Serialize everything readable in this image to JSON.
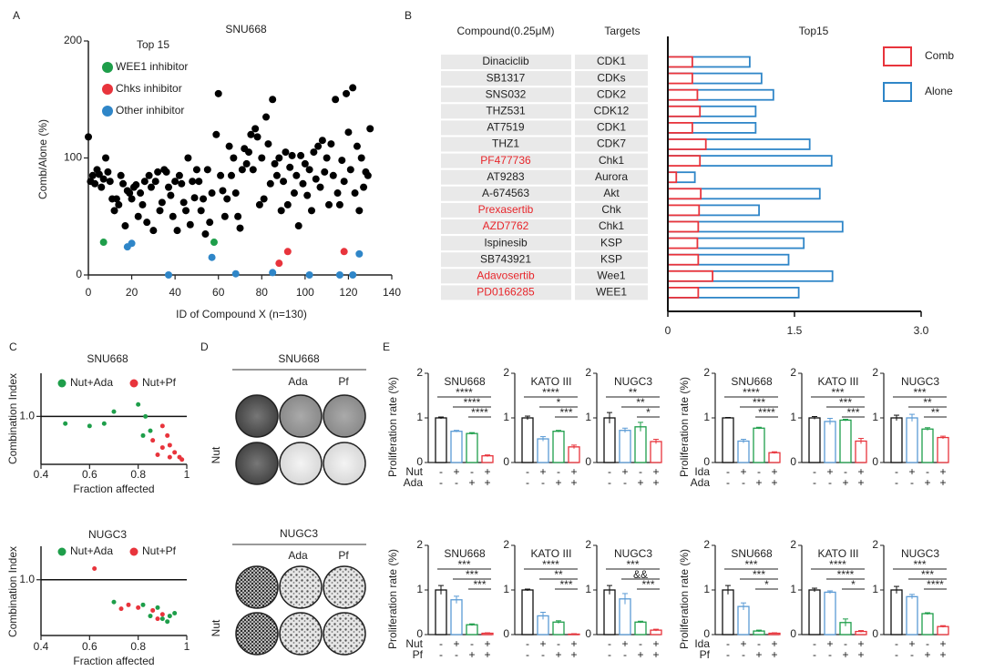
{
  "panel_labels": [
    "A",
    "B",
    "C",
    "D",
    "E"
  ],
  "panel_d": [
    {
      "title": "SNU668",
      "columns": [
        "Ada",
        "Pf"
      ],
      "row_label": "Nut"
    },
    {
      "title": "NUGC3",
      "columns": [
        "Ada",
        "Pf"
      ],
      "row_label": "Nut"
    }
  ],
  "chart_data": [
    {
      "type": "scatter",
      "title": "SNU668",
      "xlabel": "ID of Compound X (n=130)",
      "ylabel": "Comb/Alone (%)",
      "xlim": [
        0,
        140
      ],
      "xticks": [
        0,
        20,
        40,
        60,
        80,
        100,
        120,
        140
      ],
      "ylim": [
        0,
        200
      ],
      "yticks": [
        0,
        100,
        200
      ],
      "grid": false,
      "legend_title": "Top 15",
      "series": [
        {
          "color": "#000000",
          "x": [
            0,
            1,
            2,
            3,
            4,
            5,
            6,
            7,
            8,
            9,
            10,
            11,
            12,
            13,
            14,
            15,
            16,
            17,
            18,
            19,
            20,
            21,
            22,
            23,
            24,
            25,
            26,
            27,
            28,
            29,
            30,
            31,
            32,
            33,
            34,
            35,
            36,
            37,
            38,
            39,
            40,
            41,
            42,
            43,
            44,
            45,
            46,
            47,
            48,
            49,
            50,
            51,
            52,
            53,
            54,
            55,
            56,
            57,
            59,
            60,
            61,
            62,
            63,
            64,
            65,
            66,
            67,
            68,
            69,
            70,
            71,
            72,
            73,
            74,
            75,
            76,
            77,
            78,
            79,
            80,
            81,
            82,
            83,
            84,
            85,
            86,
            87,
            88,
            89,
            90,
            91,
            92,
            93,
            94,
            95,
            96,
            97,
            98,
            99,
            100,
            101,
            102,
            103,
            104,
            105,
            106,
            107,
            108,
            109,
            110,
            111,
            112,
            113,
            114,
            115,
            116,
            117,
            118,
            119,
            120,
            121,
            122,
            123,
            124,
            125,
            126,
            127,
            128,
            129,
            130
          ],
          "y": [
            118,
            80,
            85,
            78,
            90,
            86,
            75,
            82,
            100,
            88,
            80,
            65,
            55,
            65,
            60,
            85,
            78,
            42,
            72,
            70,
            65,
            75,
            77,
            50,
            70,
            60,
            80,
            45,
            85,
            75,
            38,
            80,
            88,
            55,
            62,
            90,
            88,
            75,
            68,
            50,
            80,
            38,
            85,
            78,
            62,
            55,
            100,
            43,
            80,
            66,
            90,
            80,
            55,
            65,
            35,
            90,
            45,
            70,
            120,
            155,
            85,
            72,
            50,
            65,
            110,
            85,
            100,
            70,
            50,
            40,
            90,
            108,
            95,
            105,
            120,
            90,
            125,
            118,
            60,
            100,
            65,
            135,
            112,
            78,
            150,
            95,
            85,
            100,
            55,
            80,
            105,
            60,
            92,
            102,
            70,
            85,
            42,
            102,
            78,
            95,
            68,
            90,
            55,
            105,
            82,
            110,
            75,
            115,
            88,
            100,
            60,
            112,
            85,
            150,
            70,
            60,
            98,
            80,
            155,
            122,
            90,
            160,
            70,
            110,
            55,
            100,
            75,
            88,
            85,
            125
          ]
        },
        {
          "name": "WEE1 inhibitor",
          "color": "#1e9e4a",
          "x": [
            7,
            58
          ],
          "y": [
            28,
            28
          ]
        },
        {
          "name": "Chks inhibitor",
          "color": "#e8343c",
          "x": [
            88,
            92,
            118
          ],
          "y": [
            10,
            20,
            20
          ]
        },
        {
          "name": "Other inhibitor",
          "color": "#2f86c8",
          "x": [
            18,
            20,
            37,
            57,
            68,
            85,
            102,
            116,
            122,
            125
          ],
          "y": [
            24,
            27,
            0,
            15,
            1,
            2,
            0,
            0,
            0,
            18
          ]
        }
      ]
    },
    {
      "type": "barh",
      "title": "Top15",
      "category_header": "Compound(0.25μM)",
      "target_header": "Targets",
      "categories": [
        "Dinaciclib",
        "SB1317",
        "SNS032",
        "THZ531",
        "AT7519",
        "THZ1",
        "PF477736",
        "AT9283",
        "A-674563",
        "Prexasertib",
        "AZD7762",
        "Ispinesib",
        "SB743921",
        "Adavosertib",
        "PD0166285"
      ],
      "category_colors": [
        "#222222",
        "#222222",
        "#222222",
        "#222222",
        "#222222",
        "#222222",
        "#e8262b",
        "#222222",
        "#222222",
        "#e8262b",
        "#e8262b",
        "#222222",
        "#222222",
        "#e8262b",
        "#e8262b"
      ],
      "targets": [
        "CDK1",
        "CDKs",
        "CDK2",
        "CDK12",
        "CDK1",
        "CDK7",
        "Chk1",
        "Aurora",
        "Akt",
        "Chk",
        "Chk1",
        "KSP",
        "KSP",
        "Wee1",
        "WEE1"
      ],
      "xlim": [
        0,
        3
      ],
      "xticks": [
        0,
        1.5,
        {
          "value": 3,
          "label": "3.0"
        }
      ],
      "series": [
        {
          "name": "Comb",
          "color": "#e8343c",
          "values": [
            0.29,
            0.29,
            0.35,
            0.38,
            0.29,
            0.45,
            0.38,
            0.1,
            0.39,
            0.37,
            0.36,
            0.35,
            0.36,
            0.53,
            0.36
          ]
        },
        {
          "name": "Alone",
          "color": "#2f86c8",
          "values": [
            0.97,
            1.11,
            1.25,
            1.04,
            1.04,
            1.68,
            1.94,
            0.32,
            1.8,
            1.08,
            2.07,
            1.61,
            1.43,
            1.95,
            1.55
          ]
        }
      ]
    },
    {
      "type": "scatter",
      "title": "SNU668",
      "xlabel": "Fraction affected",
      "ylabel": "Combination Index",
      "xlim": [
        0.4,
        1
      ],
      "xticks": [
        0.4,
        0.6,
        0.8,
        1
      ],
      "ylim": [
        0,
        1.9
      ],
      "yticks": [
        {
          "value": 1,
          "label": "1.0"
        }
      ],
      "grid": true,
      "series": [
        {
          "name": "Nut+Ada",
          "color": "#1e9e4a",
          "x": [
            0.5,
            0.6,
            0.66,
            0.7,
            0.8,
            0.83,
            0.82,
            0.85
          ],
          "y": [
            0.85,
            0.8,
            0.85,
            1.1,
            1.25,
            1.0,
            0.6,
            0.7
          ]
        },
        {
          "name": "Nut+Pf",
          "color": "#e8343c",
          "x": [
            0.86,
            0.9,
            0.92,
            0.88,
            0.93,
            0.95,
            0.97,
            0.98,
            0.93,
            0.9
          ],
          "y": [
            0.5,
            0.35,
            0.6,
            0.2,
            0.4,
            0.25,
            0.15,
            0.1,
            0.15,
            0.8
          ]
        }
      ]
    },
    {
      "type": "scatter",
      "title": "NUGC3",
      "xlabel": "Fraction affected",
      "ylabel": "Combination Index",
      "xlim": [
        0.4,
        1
      ],
      "xticks": [
        0.4,
        0.6,
        0.8,
        1
      ],
      "ylim": [
        0,
        1.6
      ],
      "yticks": [
        {
          "value": 1,
          "label": "1.0"
        }
      ],
      "grid": true,
      "series": [
        {
          "name": "Nut+Ada",
          "color": "#1e9e4a",
          "x": [
            0.7,
            0.82,
            0.9,
            0.93,
            0.92,
            0.88,
            0.85,
            0.95
          ],
          "y": [
            0.6,
            0.55,
            0.3,
            0.35,
            0.25,
            0.5,
            0.35,
            0.4
          ]
        },
        {
          "name": "Nut+Pf",
          "color": "#e8343c",
          "x": [
            0.62,
            0.73,
            0.76,
            0.8,
            0.86,
            0.88,
            0.9
          ],
          "y": [
            1.2,
            0.48,
            0.55,
            0.5,
            0.45,
            0.3,
            0.38
          ]
        }
      ]
    },
    {
      "type": "bar",
      "ylabel": "Proliferation rate (%)",
      "ylim": [
        0,
        2
      ],
      "yticks": [
        0,
        1,
        2
      ],
      "colors": [
        "#111111",
        "#5b9bd5",
        "#1e9e4a",
        "#e8343c"
      ],
      "treatments": [
        {
          "name": "Nut",
          "signs": [
            "-",
            "+",
            "-",
            "+"
          ]
        },
        {
          "name": "Ada",
          "signs": [
            "-",
            "-",
            "+",
            "+"
          ]
        }
      ],
      "subplots": [
        {
          "title": "SNU668",
          "values": [
            1.0,
            0.7,
            0.65,
            0.15
          ],
          "errors": [
            0.02,
            0.02,
            0.02,
            0.02
          ],
          "significance": [
            "****",
            "****",
            "****"
          ]
        },
        {
          "title": "KATO III",
          "values": [
            1.0,
            0.53,
            0.7,
            0.35
          ],
          "errors": [
            0.04,
            0.05,
            0.02,
            0.04
          ],
          "significance": [
            "****",
            "*",
            "***"
          ]
        },
        {
          "title": "NUGC3",
          "values": [
            1.0,
            0.72,
            0.8,
            0.47
          ],
          "errors": [
            0.12,
            0.05,
            0.1,
            0.05
          ],
          "significance": [
            "**",
            "**",
            "*"
          ]
        }
      ]
    },
    {
      "type": "bar",
      "ylabel": "Proliferation rate (%)",
      "ylim": [
        0,
        2
      ],
      "yticks": [
        0,
        1,
        2
      ],
      "colors": [
        "#111111",
        "#5b9bd5",
        "#1e9e4a",
        "#e8343c"
      ],
      "treatments": [
        {
          "name": "Ida",
          "signs": [
            "-",
            "+",
            "-",
            "+"
          ]
        },
        {
          "name": "Ada",
          "signs": [
            "-",
            "-",
            "+",
            "+"
          ]
        }
      ],
      "subplots": [
        {
          "title": "SNU668",
          "values": [
            1.0,
            0.48,
            0.77,
            0.22
          ],
          "errors": [
            0.01,
            0.04,
            0.02,
            0.02
          ],
          "significance": [
            "****",
            "***",
            "****"
          ]
        },
        {
          "title": "KATO III",
          "values": [
            1.0,
            0.92,
            0.95,
            0.48
          ],
          "errors": [
            0.03,
            0.07,
            0.02,
            0.06
          ],
          "significance": [
            "***",
            "***",
            "***"
          ]
        },
        {
          "title": "NUGC3",
          "values": [
            1.0,
            1.0,
            0.75,
            0.56
          ],
          "errors": [
            0.06,
            0.08,
            0.03,
            0.03
          ],
          "significance": [
            "***",
            "**",
            "**"
          ]
        }
      ]
    },
    {
      "type": "bar",
      "ylabel": "Proliferation rate (%)",
      "ylim": [
        0,
        2
      ],
      "yticks": [
        0,
        1,
        2
      ],
      "colors": [
        "#111111",
        "#5b9bd5",
        "#1e9e4a",
        "#e8343c"
      ],
      "treatments": [
        {
          "name": "Nut",
          "signs": [
            "-",
            "+",
            "-",
            "+"
          ]
        },
        {
          "name": "Pf",
          "signs": [
            "-",
            "-",
            "+",
            "+"
          ]
        }
      ],
      "subplots": [
        {
          "title": "SNU668",
          "values": [
            1.0,
            0.78,
            0.22,
            0.03
          ],
          "errors": [
            0.1,
            0.08,
            0.02,
            0.01
          ],
          "significance": [
            "***",
            "***",
            "***"
          ]
        },
        {
          "title": "KATO III",
          "values": [
            1.0,
            0.42,
            0.28,
            0.01
          ],
          "errors": [
            0.02,
            0.08,
            0.03,
            0.01
          ],
          "significance": [
            "****",
            "**",
            "***"
          ]
        },
        {
          "title": "NUGC3",
          "values": [
            1.0,
            0.8,
            0.28,
            0.1
          ],
          "errors": [
            0.1,
            0.12,
            0.02,
            0.02
          ],
          "significance": [
            "***",
            "&&",
            "***"
          ]
        }
      ]
    },
    {
      "type": "bar",
      "ylabel": "Proliferation rate (%)",
      "ylim": [
        0,
        2
      ],
      "yticks": [
        0,
        1,
        2
      ],
      "colors": [
        "#111111",
        "#5b9bd5",
        "#1e9e4a",
        "#e8343c"
      ],
      "treatments": [
        {
          "name": "Ida",
          "signs": [
            "-",
            "+",
            "-",
            "+"
          ]
        },
        {
          "name": "Pf",
          "signs": [
            "-",
            "-",
            "+",
            "+"
          ]
        }
      ],
      "subplots": [
        {
          "title": "SNU668",
          "values": [
            1.0,
            0.63,
            0.08,
            0.03
          ],
          "errors": [
            0.1,
            0.08,
            0.02,
            0.01
          ],
          "significance": [
            "***",
            "***",
            "*"
          ]
        },
        {
          "title": "KATO III",
          "values": [
            1.0,
            0.95,
            0.27,
            0.07
          ],
          "errors": [
            0.04,
            0.03,
            0.08,
            0.02
          ],
          "significance": [
            "****",
            "****",
            "*"
          ]
        },
        {
          "title": "NUGC3",
          "values": [
            1.0,
            0.85,
            0.47,
            0.18
          ],
          "errors": [
            0.08,
            0.05,
            0.02,
            0.02
          ],
          "significance": [
            "***",
            "***",
            "****"
          ]
        }
      ]
    }
  ]
}
